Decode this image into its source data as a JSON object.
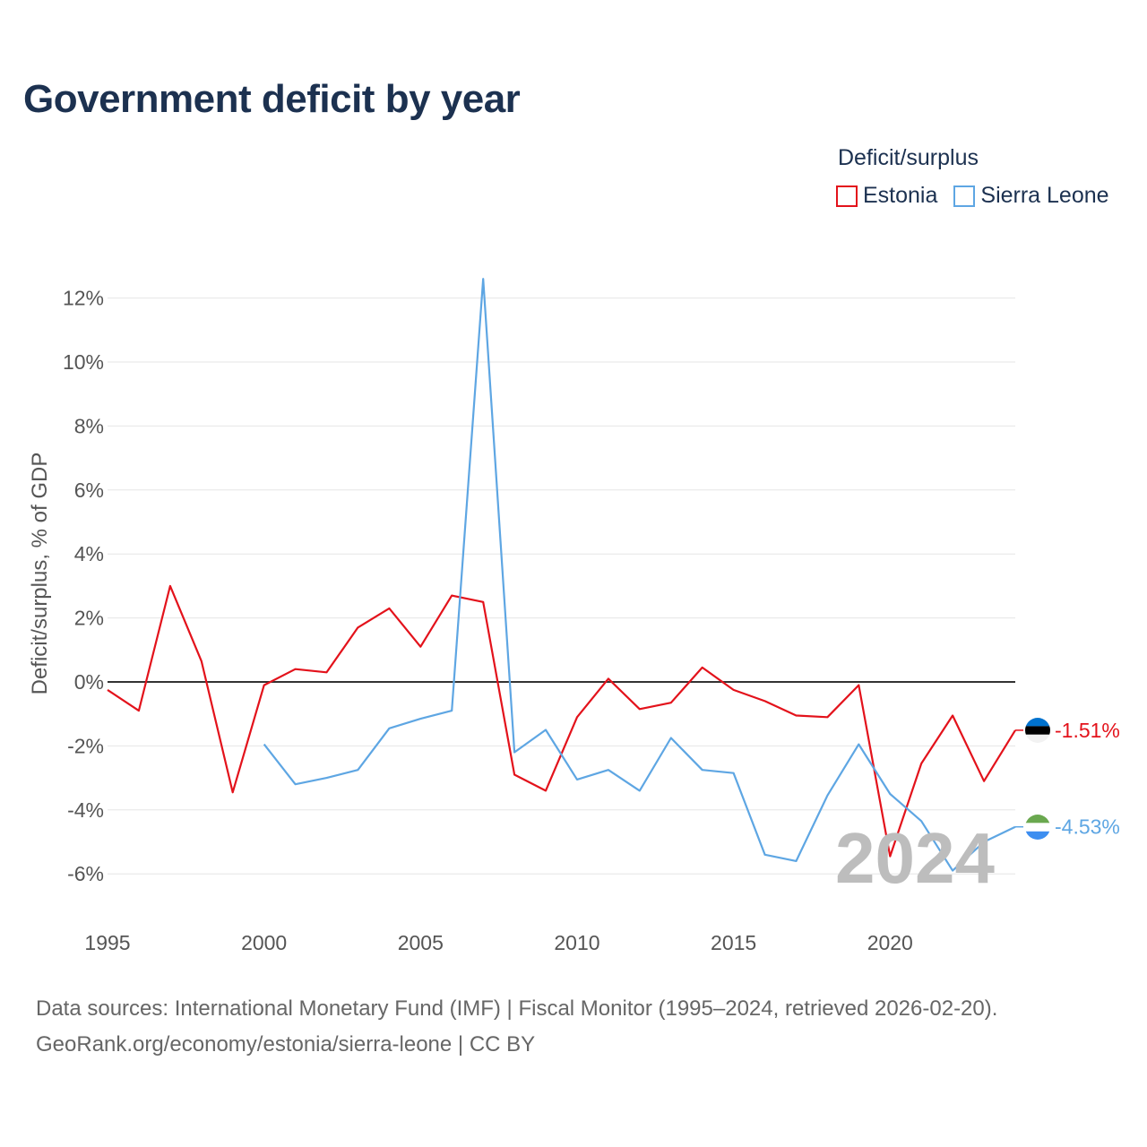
{
  "title": "Government deficit by year",
  "legend": {
    "title": "Deficit/surplus",
    "items": [
      {
        "label": "Estonia",
        "color": "#e3121b"
      },
      {
        "label": "Sierra Leone",
        "color": "#5ea6e3"
      }
    ]
  },
  "footer": {
    "line1": "Data sources: International Monetary Fund (IMF) | Fiscal Monitor (1995–2024, retrieved 2026-02-20).",
    "line2": "GeoRank.org/economy/estonia/sierra-leone | CC BY"
  },
  "watermark_year": "2024",
  "chart_data": {
    "type": "line",
    "title": "Government deficit by year",
    "xlabel": "",
    "ylabel": "Deficit/surplus, % of GDP",
    "xlim": [
      1995,
      2024
    ],
    "ylim": [
      -7,
      13
    ],
    "x_ticks": [
      1995,
      2000,
      2005,
      2010,
      2015,
      2020
    ],
    "y_ticks": [
      -6,
      -4,
      -2,
      0,
      2,
      4,
      6,
      8,
      10,
      12
    ],
    "y_tick_labels": [
      "-6%",
      "-4%",
      "-2%",
      "0%",
      "2%",
      "4%",
      "6%",
      "8%",
      "10%",
      "12%"
    ],
    "grid": true,
    "legend_position": "top-right",
    "series": [
      {
        "name": "Estonia",
        "color": "#e3121b",
        "end_label": "-1.51%",
        "x": [
          1995,
          1996,
          1997,
          1998,
          1999,
          2000,
          2001,
          2002,
          2003,
          2004,
          2005,
          2006,
          2007,
          2008,
          2009,
          2010,
          2011,
          2012,
          2013,
          2014,
          2015,
          2016,
          2017,
          2018,
          2019,
          2020,
          2021,
          2022,
          2023,
          2024
        ],
        "values": [
          -0.25,
          -0.9,
          3.0,
          0.65,
          -3.45,
          -0.1,
          0.4,
          0.3,
          1.7,
          2.3,
          1.1,
          2.7,
          2.5,
          -2.9,
          -3.4,
          -1.1,
          0.1,
          -0.85,
          -0.65,
          0.45,
          -0.25,
          -0.6,
          -1.05,
          -1.1,
          -0.1,
          -5.45,
          -2.55,
          -1.05,
          -3.1,
          -1.51
        ]
      },
      {
        "name": "Sierra Leone",
        "color": "#5ea6e3",
        "end_label": "-4.53%",
        "x": [
          2000,
          2001,
          2002,
          2003,
          2004,
          2005,
          2006,
          2007,
          2008,
          2009,
          2010,
          2011,
          2012,
          2013,
          2014,
          2015,
          2016,
          2017,
          2018,
          2019,
          2020,
          2021,
          2022,
          2023,
          2024
        ],
        "values": [
          -1.95,
          -3.2,
          -3.0,
          -2.75,
          -1.45,
          -1.15,
          -0.9,
          12.6,
          -2.2,
          -1.5,
          -3.05,
          -2.75,
          -3.4,
          -1.75,
          -2.75,
          -2.85,
          -5.4,
          -5.6,
          -3.55,
          -1.95,
          -3.5,
          -4.35,
          -5.9,
          -5.0,
          -4.53
        ]
      }
    ]
  }
}
